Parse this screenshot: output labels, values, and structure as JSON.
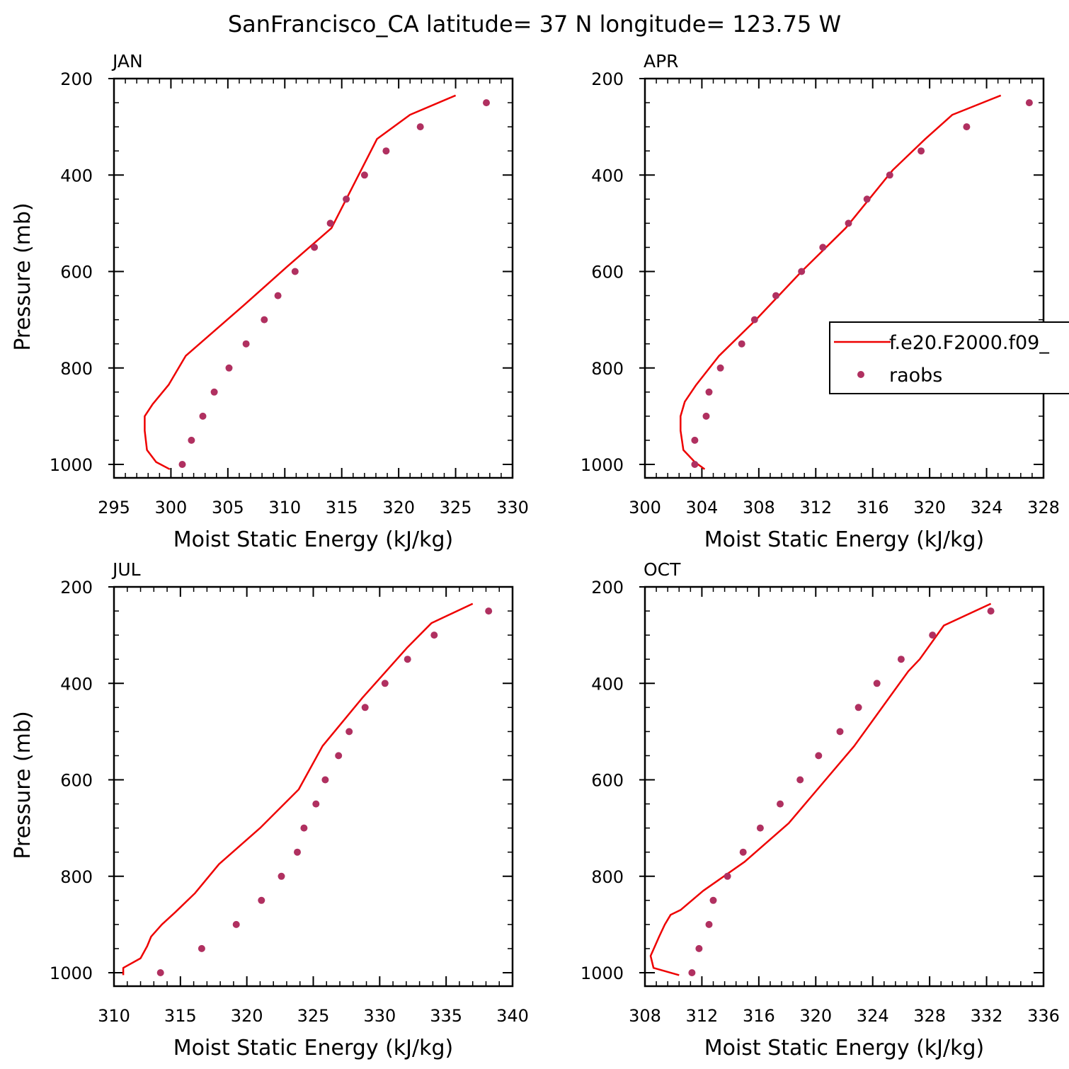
{
  "title": "SanFrancisco_CA  latitude= 37 N longitude= 123.75 W",
  "legend": {
    "model_label": "f.e20.F2000.f09_",
    "obs_label": "raobs"
  },
  "colors": {
    "model": "#ee0000",
    "obs": "#b03060",
    "axis": "#000000"
  },
  "chart_data": [
    {
      "type": "line",
      "panel": "JAN",
      "title": "JAN",
      "xlabel": "Moist Static Energy (kJ/kg)",
      "ylabel": "Pressure (mb)",
      "xlim": [
        295,
        330
      ],
      "ylim": [
        1000,
        200
      ],
      "xticks": [
        295,
        300,
        305,
        310,
        315,
        320,
        325,
        330
      ],
      "yticks": [
        200,
        400,
        600,
        800,
        1000
      ],
      "series": [
        {
          "name": "f.e20.F2000.f09_",
          "type": "line",
          "x": [
            299.9,
            298.7,
            297.9,
            297.7,
            297.7,
            298.4,
            299.8,
            301.3,
            306.4,
            310.2,
            314.1,
            318.1,
            321.0,
            325.0
          ],
          "y": [
            1010,
            995,
            970,
            930,
            900,
            875,
            835,
            775,
            670,
            590,
            510,
            325,
            275,
            235
          ]
        },
        {
          "name": "raobs",
          "type": "scatter",
          "x": [
            301.0,
            301.8,
            302.8,
            303.8,
            305.1,
            306.6,
            308.2,
            309.4,
            310.9,
            312.6,
            314.0,
            315.4,
            317.0,
            318.9,
            321.9,
            327.7
          ],
          "y": [
            1000,
            950,
            900,
            850,
            800,
            750,
            700,
            650,
            600,
            550,
            500,
            450,
            400,
            350,
            300,
            250
          ]
        }
      ]
    },
    {
      "type": "line",
      "panel": "APR",
      "title": "APR",
      "xlabel": "Moist Static Energy (kJ/kg)",
      "ylabel": "",
      "xlim": [
        300,
        328
      ],
      "ylim": [
        1000,
        200
      ],
      "xticks": [
        300,
        304,
        308,
        312,
        316,
        320,
        324,
        328
      ],
      "yticks": [
        200,
        400,
        600,
        800,
        1000
      ],
      "series": [
        {
          "name": "f.e20.F2000.f09_",
          "type": "line",
          "x": [
            304.2,
            303.5,
            302.7,
            302.5,
            302.5,
            302.8,
            303.6,
            305.2,
            307.8,
            311.0,
            314.1,
            317.4,
            319.7,
            321.6,
            325.0
          ],
          "y": [
            1010,
            995,
            970,
            930,
            900,
            870,
            835,
            775,
            700,
            600,
            510,
            390,
            325,
            275,
            235
          ]
        },
        {
          "name": "raobs",
          "type": "scatter",
          "x": [
            303.5,
            303.5,
            304.3,
            304.5,
            305.3,
            306.8,
            307.7,
            309.2,
            311.0,
            312.5,
            314.3,
            315.6,
            317.2,
            319.4,
            322.6,
            327.0
          ],
          "y": [
            1000,
            950,
            900,
            850,
            800,
            750,
            700,
            650,
            600,
            550,
            500,
            450,
            400,
            350,
            300,
            250
          ]
        }
      ]
    },
    {
      "type": "line",
      "panel": "JUL",
      "title": "JUL",
      "xlabel": "Moist Static Energy (kJ/kg)",
      "ylabel": "Pressure (mb)",
      "xlim": [
        310,
        340
      ],
      "ylim": [
        1000,
        200
      ],
      "xticks": [
        310,
        315,
        320,
        325,
        330,
        335,
        340
      ],
      "yticks": [
        200,
        400,
        600,
        800,
        1000
      ],
      "series": [
        {
          "name": "f.e20.F2000.f09_",
          "type": "line",
          "x": [
            310.7,
            310.7,
            312.0,
            312.5,
            312.8,
            313.6,
            314.6,
            316.1,
            317.9,
            321.0,
            323.9,
            325.7,
            328.7,
            332.1,
            333.9,
            337.0
          ],
          "y": [
            1005,
            990,
            970,
            945,
            925,
            900,
            875,
            835,
            775,
            700,
            620,
            530,
            430,
            325,
            275,
            235
          ]
        },
        {
          "name": "raobs",
          "type": "scatter",
          "x": [
            313.5,
            316.6,
            319.2,
            321.1,
            322.6,
            323.8,
            324.3,
            325.2,
            325.9,
            326.9,
            327.7,
            328.9,
            330.4,
            332.1,
            334.1,
            338.2
          ],
          "y": [
            1000,
            950,
            900,
            850,
            800,
            750,
            700,
            650,
            600,
            550,
            500,
            450,
            400,
            350,
            300,
            250
          ]
        }
      ]
    },
    {
      "type": "line",
      "panel": "OCT",
      "title": "OCT",
      "xlabel": "Moist Static Energy (kJ/kg)",
      "ylabel": "",
      "xlim": [
        308,
        336
      ],
      "ylim": [
        1000,
        200
      ],
      "xticks": [
        308,
        312,
        316,
        320,
        324,
        328,
        332,
        336
      ],
      "yticks": [
        200,
        400,
        600,
        800,
        1000
      ],
      "series": [
        {
          "name": "f.e20.F2000.f09_",
          "type": "line",
          "x": [
            310.4,
            308.6,
            308.4,
            308.7,
            309.0,
            309.4,
            309.8,
            310.5,
            312.1,
            315.0,
            318.1,
            322.7,
            326.5,
            327.3,
            329.0,
            332.3
          ],
          "y": [
            1005,
            990,
            965,
            945,
            925,
            900,
            880,
            870,
            830,
            770,
            690,
            530,
            375,
            350,
            280,
            235
          ]
        },
        {
          "name": "raobs",
          "type": "scatter",
          "x": [
            311.3,
            311.8,
            312.5,
            312.8,
            313.8,
            314.9,
            316.1,
            317.5,
            318.9,
            320.2,
            321.7,
            323.0,
            324.3,
            326.0,
            328.2,
            332.3
          ],
          "y": [
            1000,
            950,
            900,
            850,
            800,
            750,
            700,
            650,
            600,
            550,
            500,
            450,
            400,
            350,
            300,
            250
          ]
        }
      ]
    }
  ]
}
